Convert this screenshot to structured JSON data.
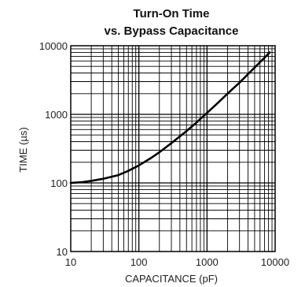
{
  "chart_data": {
    "type": "line",
    "title_lines": [
      "Turn-On Time",
      "vs. Bypass Capacitance"
    ],
    "xlabel": "CAPACITANCE (pF)",
    "ylabel": "TIME (µs)",
    "x_scale": "log",
    "y_scale": "log",
    "xlim": [
      10,
      10000
    ],
    "ylim": [
      10,
      10000
    ],
    "x_tick_labels": [
      "10",
      "100",
      "1000",
      "10000"
    ],
    "y_tick_labels": [
      "10",
      "100",
      "1000",
      "10000"
    ],
    "grid": true,
    "series": [
      {
        "x": [
          10,
          15,
          20,
          30,
          50,
          70,
          100,
          150,
          200,
          300,
          500,
          700,
          1000,
          1500,
          2000,
          3000,
          5000,
          7000,
          8300
        ],
        "y": [
          100,
          103,
          107,
          115,
          130,
          150,
          180,
          230,
          280,
          380,
          570,
          760,
          1050,
          1520,
          2000,
          2900,
          4800,
          6700,
          8000
        ]
      }
    ],
    "colors": {
      "curve": "#000000",
      "grid": "#000000",
      "text": "#222222"
    }
  }
}
